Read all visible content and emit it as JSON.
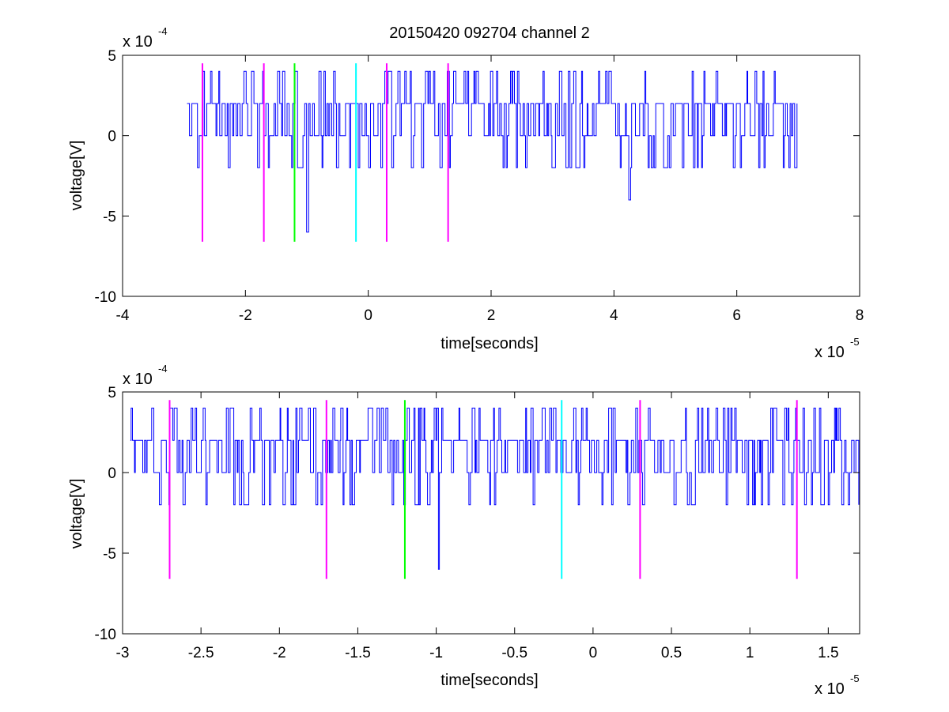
{
  "figure": {
    "title": "20150420 092704 channel 2"
  },
  "chart_data": [
    {
      "type": "line",
      "title": "20150420 092704 channel 2",
      "xlabel": "time[seconds]",
      "ylabel": "voltage[V]",
      "x_exponent_label": {
        "base": "x 10",
        "power": "-5"
      },
      "y_exponent_label": {
        "base": "x 10",
        "power": "-4"
      },
      "xlim": [
        -4,
        8
      ],
      "ylim": [
        -10,
        5
      ],
      "x_unit_scale": "1e-5",
      "y_unit_scale": "1e-4",
      "xticks": [
        "-4",
        "-2",
        "0",
        "2",
        "4",
        "6",
        "8"
      ],
      "yticks": [
        "5",
        "0",
        "-5",
        "-10"
      ],
      "grid": false,
      "signal": {
        "color": "#0000ff",
        "x_range": [
          -2.95,
          7.0
        ],
        "levels": [
          -6,
          -4,
          -2,
          0,
          2,
          4
        ],
        "dip_times": [
          -1.0,
          4.25
        ],
        "dip_levels": [
          -6,
          -4
        ]
      },
      "markers": [
        {
          "x": -2.7,
          "color": "#ff00ff",
          "y_range": [
            4.5,
            -6.6
          ]
        },
        {
          "x": -1.7,
          "color": "#ff00ff",
          "y_range": [
            4.5,
            -6.6
          ]
        },
        {
          "x": -1.2,
          "color": "#00ff00",
          "y_range": [
            4.5,
            -6.6
          ]
        },
        {
          "x": -0.2,
          "color": "#00ffff",
          "y_range": [
            4.5,
            -6.6
          ]
        },
        {
          "x": 0.3,
          "color": "#ff00ff",
          "y_range": [
            4.5,
            -6.6
          ]
        },
        {
          "x": 1.3,
          "color": "#ff00ff",
          "y_range": [
            4.5,
            -6.6
          ]
        }
      ]
    },
    {
      "type": "line",
      "title": "",
      "xlabel": "time[seconds]",
      "ylabel": "voltage[V]",
      "x_exponent_label": {
        "base": "x 10",
        "power": "-5"
      },
      "y_exponent_label": {
        "base": "x 10",
        "power": "-4"
      },
      "xlim": [
        -3,
        1.7
      ],
      "ylim": [
        -10,
        5
      ],
      "x_unit_scale": "1e-5",
      "y_unit_scale": "1e-4",
      "xticks": [
        "-3",
        "-2.5",
        "-2",
        "-1.5",
        "-1",
        "-0.5",
        "0",
        "0.5",
        "1",
        "1.5"
      ],
      "yticks": [
        "5",
        "0",
        "-5",
        "-10"
      ],
      "grid": false,
      "signal": {
        "color": "#0000ff",
        "x_range": [
          -2.95,
          1.7
        ],
        "levels": [
          -6,
          -2,
          0,
          2,
          4
        ],
        "dip_times": [
          -0.99
        ],
        "dip_levels": [
          -6
        ]
      },
      "markers": [
        {
          "x": -2.7,
          "color": "#ff00ff",
          "y_range": [
            4.5,
            -6.6
          ]
        },
        {
          "x": -1.7,
          "color": "#ff00ff",
          "y_range": [
            4.5,
            -6.6
          ]
        },
        {
          "x": -1.2,
          "color": "#00ff00",
          "y_range": [
            4.5,
            -6.6
          ]
        },
        {
          "x": -0.2,
          "color": "#00ffff",
          "y_range": [
            4.5,
            -6.6
          ]
        },
        {
          "x": 0.3,
          "color": "#ff00ff",
          "y_range": [
            4.5,
            -6.6
          ]
        },
        {
          "x": 1.3,
          "color": "#ff00ff",
          "y_range": [
            4.5,
            -6.6
          ]
        }
      ]
    }
  ]
}
